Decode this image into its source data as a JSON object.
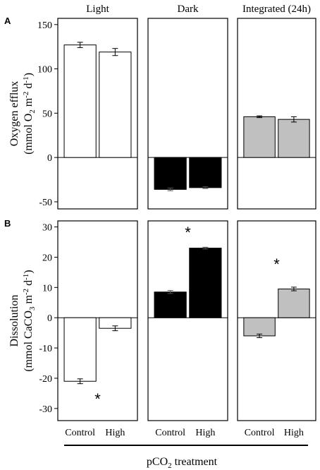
{
  "figure": {
    "xlabel_main": "pCO",
    "xlabel_sub": "2",
    "xlabel_rest": " treatment",
    "colors": {
      "light": "#ffffff",
      "dark": "#000000",
      "integrated": "#c0c0c0",
      "frame": "#000000"
    }
  },
  "chart_data": [
    {
      "type": "bar",
      "panel_letter": "A",
      "ylabel_line1": "Oxygen efflux",
      "ylabel_line2_parts": [
        "(mmol O",
        "2",
        " m",
        "-2",
        " d",
        "-1",
        ")"
      ],
      "ylim": [
        -58,
        157
      ],
      "yticks": [
        -50,
        0,
        50,
        100,
        150
      ],
      "subpanels": [
        {
          "title": "Light",
          "color": "#ffffff",
          "categories": [
            "Control",
            "High"
          ],
          "values": [
            127,
            119
          ],
          "errors": [
            3,
            4
          ],
          "stars": []
        },
        {
          "title": "Dark",
          "color": "#000000",
          "categories": [
            "Control",
            "High"
          ],
          "values": [
            -36,
            -34
          ],
          "errors": [
            1.5,
            1
          ],
          "stars": []
        },
        {
          "title": "Integrated (24h)",
          "color": "#c0c0c0",
          "categories": [
            "Control",
            "High"
          ],
          "values": [
            46,
            43
          ],
          "errors": [
            1,
            3
          ],
          "stars": []
        }
      ]
    },
    {
      "type": "bar",
      "panel_letter": "B",
      "ylabel_line1": "Dissolution",
      "ylabel_line2_parts": [
        "(mmol CaCO",
        "3",
        " m",
        "-2",
        " d",
        "-1",
        ")"
      ],
      "ylim": [
        -34,
        32
      ],
      "yticks": [
        -30,
        -20,
        -10,
        0,
        10,
        20,
        30
      ],
      "subpanels": [
        {
          "title": "",
          "color": "#ffffff",
          "categories": [
            "Control",
            "High"
          ],
          "values": [
            -21,
            -3.5
          ],
          "errors": [
            0.8,
            0.8
          ],
          "stars": [
            {
              "label": "*",
              "x": 1.5,
              "y": -26.5
            }
          ]
        },
        {
          "title": "",
          "color": "#000000",
          "categories": [
            "Control",
            "High"
          ],
          "values": [
            8.5,
            23
          ],
          "errors": [
            0.5,
            0.3
          ],
          "stars": [
            {
              "label": "*",
              "x": 1.5,
              "y": 28.5
            }
          ]
        },
        {
          "title": "",
          "color": "#c0c0c0",
          "categories": [
            "Control",
            "High"
          ],
          "values": [
            -6,
            9.5
          ],
          "errors": [
            0.6,
            0.6
          ],
          "stars": [
            {
              "label": "*",
              "x": 1.5,
              "y": 18
            }
          ]
        }
      ]
    }
  ]
}
